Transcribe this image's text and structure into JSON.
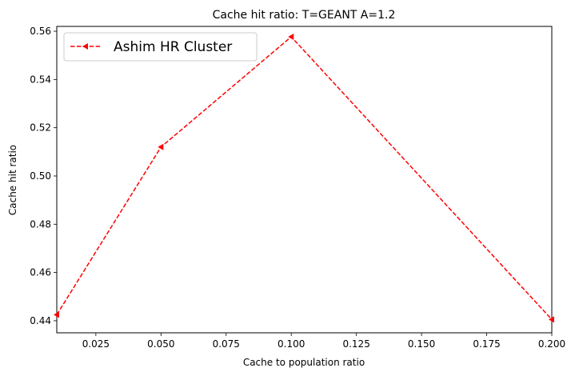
{
  "chart_data": {
    "type": "line",
    "title": "Cache hit ratio: T=GEANT A=1.2",
    "xlabel": "Cache to population ratio",
    "ylabel": "Cache hit ratio",
    "xlim": [
      0.01,
      0.2
    ],
    "ylim": [
      0.435,
      0.562
    ],
    "x_ticks": [
      "0.025",
      "0.050",
      "0.075",
      "0.100",
      "0.125",
      "0.150",
      "0.175",
      "0.200"
    ],
    "y_ticks": [
      "0.44",
      "0.46",
      "0.48",
      "0.50",
      "0.52",
      "0.54",
      "0.56"
    ],
    "grid": false,
    "legend_position": "top-left",
    "series": [
      {
        "name": "Ashim HR Cluster",
        "color": "#ff0000",
        "line_style": "dashed",
        "marker": "triangle-left",
        "x": [
          0.01,
          0.05,
          0.1,
          0.2
        ],
        "y": [
          0.4425,
          0.512,
          0.5577,
          0.4405
        ]
      }
    ]
  }
}
